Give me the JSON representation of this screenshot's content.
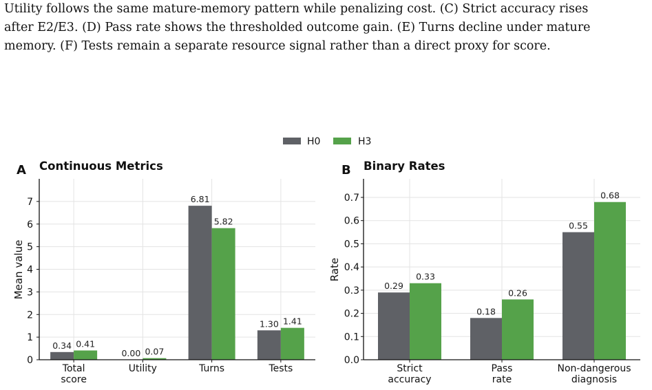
{
  "caption": {
    "lines": [
      "Utility follows the same mature-memory pattern while penalizing cost. (C) Strict accuracy rises",
      "after E2/E3. (D) Pass rate shows the thresholded outcome gain. (E) Turns decline under mature",
      "memory. (F) Tests remain a separate resource signal rather than a direct proxy for score."
    ]
  },
  "legend": {
    "entries": [
      {
        "name": "H0",
        "color": "#5f6166"
      },
      {
        "name": "H3",
        "color": "#55a24a"
      }
    ],
    "placement": "top-center"
  },
  "chart_data": [
    {
      "panel": "A",
      "type": "bar",
      "title": "Continuous Metrics",
      "ylabel": "Mean value",
      "xlabel": "",
      "categories": [
        [
          "Total",
          "score"
        ],
        [
          "Utility"
        ],
        [
          "Turns"
        ],
        [
          "Tests"
        ]
      ],
      "series": [
        {
          "name": "H0",
          "values": [
            0.34,
            0.0,
            6.81,
            1.3
          ],
          "labels": [
            "0.34",
            "0.00",
            "6.81",
            "1.30"
          ]
        },
        {
          "name": "H3",
          "values": [
            0.41,
            0.07,
            5.82,
            1.41
          ],
          "labels": [
            "0.41",
            "0.07",
            "5.82",
            "1.41"
          ]
        }
      ],
      "ylim": [
        0,
        8
      ],
      "yticks": [
        0,
        1,
        2,
        3,
        4,
        5,
        6,
        7
      ],
      "ytick_labels": [
        "0",
        "1",
        "2",
        "3",
        "4",
        "5",
        "6",
        "7"
      ],
      "grid": true
    },
    {
      "panel": "B",
      "type": "bar",
      "title": "Binary Rates",
      "ylabel": "Rate",
      "xlabel": "",
      "categories": [
        [
          "Strict",
          "accuracy"
        ],
        [
          "Pass",
          "rate"
        ],
        [
          "Non-dangerous",
          "diagnosis"
        ]
      ],
      "series": [
        {
          "name": "H0",
          "values": [
            0.29,
            0.18,
            0.55
          ],
          "labels": [
            "0.29",
            "0.18",
            "0.55"
          ]
        },
        {
          "name": "H3",
          "values": [
            0.33,
            0.26,
            0.68
          ],
          "labels": [
            "0.33",
            "0.26",
            "0.68"
          ]
        }
      ],
      "ylim": [
        0,
        0.78
      ],
      "yticks": [
        0,
        0.1,
        0.2,
        0.3,
        0.4,
        0.5,
        0.6,
        0.7
      ],
      "ytick_labels": [
        "0.0",
        "0.1",
        "0.2",
        "0.3",
        "0.4",
        "0.5",
        "0.6",
        "0.7"
      ],
      "grid": true
    }
  ]
}
